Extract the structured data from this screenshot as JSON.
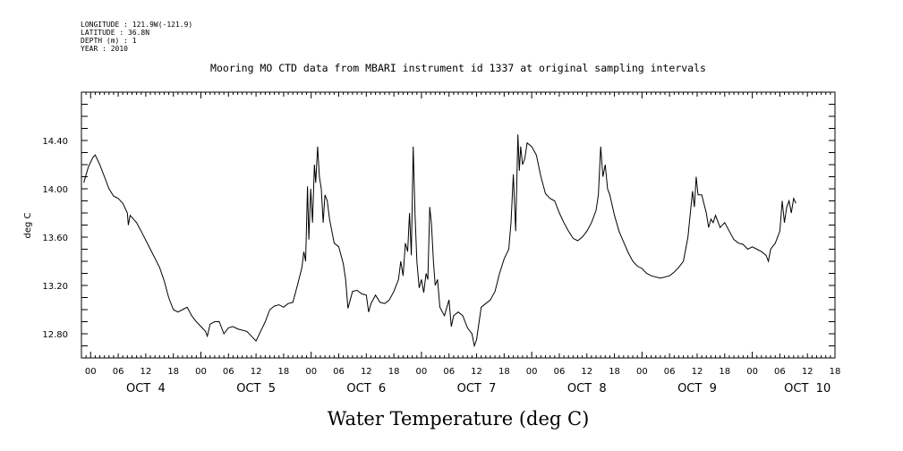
{
  "header": {
    "meta_lines": [
      "LONGITUDE : 121.9W(-121.9)",
      "LATITUDE : 36.8N",
      "DEPTH (m) : 1",
      "YEAR : 2010"
    ]
  },
  "chart_data": {
    "type": "line",
    "title": "Mooring MO CTD data from MBARI instrument id 1337 at original sampling intervals",
    "xlabel": "Water Temperature (deg C)",
    "ylabel": "deg C",
    "x_unit": "hours from OCT 4 00:00",
    "xlim": [
      -2,
      162
    ],
    "ylim": [
      12.6,
      14.8
    ],
    "y_ticks": [
      12.8,
      13.2,
      13.6,
      14.0,
      14.4
    ],
    "y_tick_labels": [
      "12.80",
      "13.20",
      "13.60",
      "14.00",
      "14.40"
    ],
    "x_hour_labels": [
      "00",
      "06",
      "12",
      "18"
    ],
    "days": [
      "OCT 4",
      "OCT 5",
      "OCT 6",
      "OCT 7",
      "OCT 8",
      "OCT 9",
      "OCT 10"
    ],
    "grid": false,
    "series": [
      {
        "color": "#000000",
        "points": [
          [
            -1.5,
            14.05
          ],
          [
            -0.5,
            14.18
          ],
          [
            0.5,
            14.26
          ],
          [
            1.0,
            14.28
          ],
          [
            2,
            14.2
          ],
          [
            3,
            14.1
          ],
          [
            4,
            14.0
          ],
          [
            5,
            13.94
          ],
          [
            6,
            13.92
          ],
          [
            7,
            13.88
          ],
          [
            8,
            13.8
          ],
          [
            8.2,
            13.7
          ],
          [
            8.6,
            13.78
          ],
          [
            10,
            13.72
          ],
          [
            11,
            13.65
          ],
          [
            13,
            13.5
          ],
          [
            15,
            13.35
          ],
          [
            16,
            13.24
          ],
          [
            17,
            13.1
          ],
          [
            18,
            13.0
          ],
          [
            19,
            12.98
          ],
          [
            20,
            13.0
          ],
          [
            21,
            13.02
          ],
          [
            22,
            12.95
          ],
          [
            23,
            12.9
          ],
          [
            24,
            12.86
          ],
          [
            25,
            12.82
          ],
          [
            25.4,
            12.78
          ],
          [
            26,
            12.88
          ],
          [
            27,
            12.9
          ],
          [
            28,
            12.9
          ],
          [
            29,
            12.8
          ],
          [
            30,
            12.85
          ],
          [
            31,
            12.86
          ],
          [
            32,
            12.84
          ],
          [
            34,
            12.82
          ],
          [
            35,
            12.78
          ],
          [
            36,
            12.74
          ],
          [
            37,
            12.82
          ],
          [
            38,
            12.9
          ],
          [
            39,
            13.0
          ],
          [
            40,
            13.03
          ],
          [
            41,
            13.04
          ],
          [
            42,
            13.02
          ],
          [
            43,
            13.05
          ],
          [
            44,
            13.06
          ],
          [
            45,
            13.2
          ],
          [
            46,
            13.35
          ],
          [
            46.4,
            13.48
          ],
          [
            46.8,
            13.4
          ],
          [
            47.2,
            14.02
          ],
          [
            47.5,
            13.58
          ],
          [
            47.9,
            14.0
          ],
          [
            48.3,
            13.72
          ],
          [
            48.7,
            14.2
          ],
          [
            49.0,
            14.05
          ],
          [
            49.4,
            14.35
          ],
          [
            49.8,
            14.1
          ],
          [
            50.2,
            14.0
          ],
          [
            50.6,
            13.72
          ],
          [
            51,
            13.95
          ],
          [
            51.5,
            13.9
          ],
          [
            52,
            13.75
          ],
          [
            53,
            13.55
          ],
          [
            54,
            13.52
          ],
          [
            55,
            13.38
          ],
          [
            55.5,
            13.25
          ],
          [
            56,
            13.01
          ],
          [
            57,
            13.15
          ],
          [
            58,
            13.16
          ],
          [
            59,
            13.13
          ],
          [
            60,
            13.12
          ],
          [
            60.5,
            12.98
          ],
          [
            61,
            13.05
          ],
          [
            62,
            13.12
          ],
          [
            63,
            13.06
          ],
          [
            64,
            13.05
          ],
          [
            65,
            13.08
          ],
          [
            66,
            13.15
          ],
          [
            67,
            13.25
          ],
          [
            67.5,
            13.4
          ],
          [
            68,
            13.28
          ],
          [
            68.5,
            13.55
          ],
          [
            69,
            13.48
          ],
          [
            69.4,
            13.8
          ],
          [
            69.8,
            13.45
          ],
          [
            70.2,
            14.35
          ],
          [
            70.6,
            13.8
          ],
          [
            71,
            13.4
          ],
          [
            71.5,
            13.18
          ],
          [
            72,
            13.25
          ],
          [
            72.5,
            13.14
          ],
          [
            73,
            13.3
          ],
          [
            73.4,
            13.25
          ],
          [
            73.8,
            13.85
          ],
          [
            74.2,
            13.7
          ],
          [
            74.6,
            13.4
          ],
          [
            75,
            13.2
          ],
          [
            75.5,
            13.25
          ],
          [
            76,
            13.02
          ],
          [
            77,
            12.95
          ],
          [
            78,
            13.08
          ],
          [
            78.5,
            12.86
          ],
          [
            79,
            12.95
          ],
          [
            80,
            12.98
          ],
          [
            81,
            12.95
          ],
          [
            82,
            12.85
          ],
          [
            83,
            12.8
          ],
          [
            83.5,
            12.7
          ],
          [
            84,
            12.75
          ],
          [
            85,
            13.02
          ],
          [
            86,
            13.05
          ],
          [
            87,
            13.08
          ],
          [
            88,
            13.15
          ],
          [
            89,
            13.3
          ],
          [
            90,
            13.42
          ],
          [
            91,
            13.5
          ],
          [
            91.5,
            13.72
          ],
          [
            92,
            14.12
          ],
          [
            92.5,
            13.65
          ],
          [
            93,
            14.45
          ],
          [
            93.3,
            14.15
          ],
          [
            93.6,
            14.35
          ],
          [
            94,
            14.2
          ],
          [
            94.5,
            14.25
          ],
          [
            95,
            14.38
          ],
          [
            96,
            14.35
          ],
          [
            97,
            14.28
          ],
          [
            98,
            14.1
          ],
          [
            99,
            13.96
          ],
          [
            100,
            13.92
          ],
          [
            101,
            13.9
          ],
          [
            102,
            13.8
          ],
          [
            103,
            13.72
          ],
          [
            104,
            13.65
          ],
          [
            105,
            13.59
          ],
          [
            106,
            13.57
          ],
          [
            107,
            13.6
          ],
          [
            108,
            13.65
          ],
          [
            109,
            13.72
          ],
          [
            110,
            13.82
          ],
          [
            110.5,
            13.95
          ],
          [
            111,
            14.35
          ],
          [
            111.5,
            14.1
          ],
          [
            112,
            14.2
          ],
          [
            112.5,
            14.0
          ],
          [
            113,
            13.95
          ],
          [
            114,
            13.78
          ],
          [
            115,
            13.65
          ],
          [
            116,
            13.56
          ],
          [
            117,
            13.47
          ],
          [
            118,
            13.4
          ],
          [
            119,
            13.36
          ],
          [
            120,
            13.34
          ],
          [
            121,
            13.3
          ],
          [
            122,
            13.28
          ],
          [
            124,
            13.26
          ],
          [
            126,
            13.28
          ],
          [
            127,
            13.31
          ],
          [
            128,
            13.35
          ],
          [
            129,
            13.4
          ],
          [
            130,
            13.6
          ],
          [
            131,
            13.98
          ],
          [
            131.4,
            13.85
          ],
          [
            131.8,
            14.1
          ],
          [
            132.2,
            13.95
          ],
          [
            133,
            13.95
          ],
          [
            134,
            13.8
          ],
          [
            134.5,
            13.68
          ],
          [
            135,
            13.75
          ],
          [
            135.5,
            13.72
          ],
          [
            136,
            13.78
          ],
          [
            137,
            13.68
          ],
          [
            138,
            13.72
          ],
          [
            139,
            13.65
          ],
          [
            140,
            13.58
          ],
          [
            141,
            13.55
          ],
          [
            142,
            13.54
          ],
          [
            143,
            13.5
          ],
          [
            144,
            13.52
          ],
          [
            145,
            13.5
          ],
          [
            146,
            13.48
          ],
          [
            147,
            13.45
          ],
          [
            147.5,
            13.4
          ],
          [
            148,
            13.5
          ],
          [
            149,
            13.55
          ],
          [
            150,
            13.65
          ],
          [
            150.5,
            13.9
          ],
          [
            151,
            13.72
          ],
          [
            151.5,
            13.85
          ],
          [
            152,
            13.9
          ],
          [
            152.5,
            13.8
          ],
          [
            153,
            13.92
          ],
          [
            153.5,
            13.88
          ]
        ]
      }
    ]
  }
}
